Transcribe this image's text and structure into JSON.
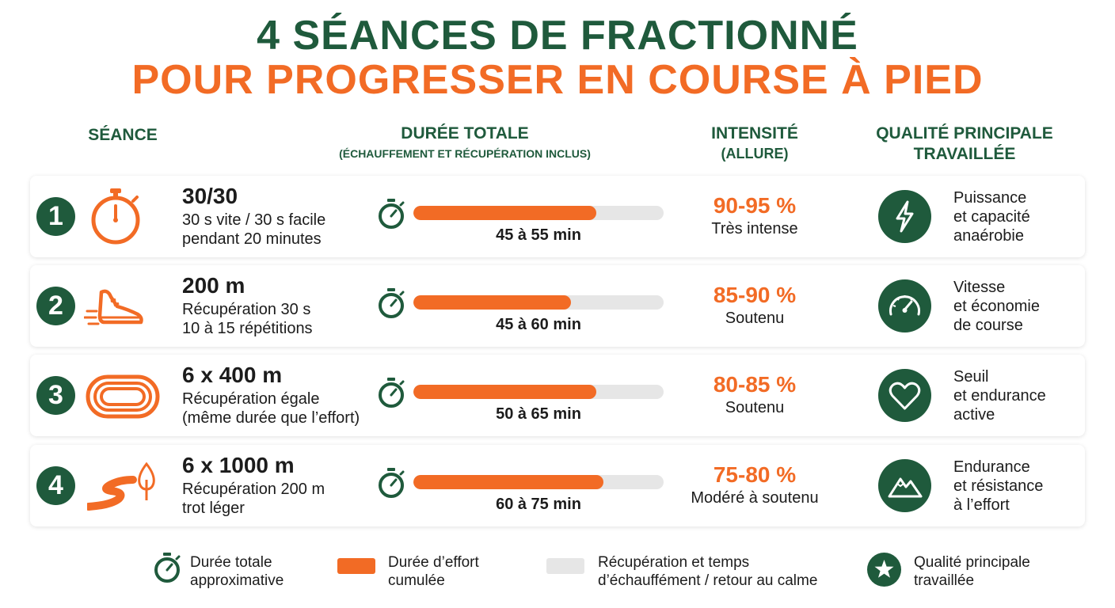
{
  "title": {
    "line1": "4 SÉANCES DE FRACTIONNÉ",
    "line2": "POUR PROGRESSER EN COURSE À PIED"
  },
  "headers": {
    "seance": "SÉANCE",
    "duree": "DURÉE TOTALE",
    "duree_sub": "(ÉCHAUFFEMENT ET RÉCUPÉRATION INCLUS)",
    "intensite": "INTENSITÉ",
    "intensite_sub": "(ALLURE)",
    "qualite_line1": "QUALITÉ PRINCIPALE",
    "qualite_line2": "TRAVAILLÉE"
  },
  "rows": [
    {
      "number": "1",
      "icon": "stopwatch-icon",
      "title": "30/30",
      "detail1": "30 s vite / 30 s facile",
      "detail2": "pendant 20 minutes",
      "effort_fraction": 0.73,
      "duration": "45 à 55 min",
      "intensity_pct": "90-95 %",
      "intensity_label": "Très intense",
      "quality_icon": "lightning-icon",
      "quality1": "Puissance",
      "quality2": "et capacité",
      "quality3": "anaérobie"
    },
    {
      "number": "2",
      "icon": "running-shoe-icon",
      "title": "200 m",
      "detail1": "Récupération 30 s",
      "detail2": "10 à 15 répétitions",
      "effort_fraction": 0.63,
      "duration": "45 à 60 min",
      "intensity_pct": "85-90 %",
      "intensity_label": "Soutenu",
      "quality_icon": "speedometer-icon",
      "quality1": "Vitesse",
      "quality2": "et économie",
      "quality3": "de course"
    },
    {
      "number": "3",
      "icon": "running-track-icon",
      "title": "6 x 400 m",
      "detail1": "Récupération égale",
      "detail2": "(même durée que l’effort)",
      "effort_fraction": 0.73,
      "duration": "50 à 65 min",
      "intensity_pct": "80-85 %",
      "intensity_label": "Soutenu",
      "quality_icon": "heart-icon",
      "quality1": "Seuil",
      "quality2": "et endurance",
      "quality3": "active"
    },
    {
      "number": "4",
      "icon": "winding-road-tree-icon",
      "title": "6 x 1000 m",
      "detail1": "Récupération 200 m",
      "detail2": "trot léger",
      "effort_fraction": 0.76,
      "duration": "60 à 75 min",
      "intensity_pct": "75-80 %",
      "intensity_label": "Modéré à soutenu",
      "quality_icon": "mountain-icon",
      "quality1": "Endurance",
      "quality2": "et résistance",
      "quality3": "à l’effort"
    }
  ],
  "legend": {
    "timer_line1": "Durée totale",
    "timer_line2": "approximative",
    "effort_line1": "Durée d’effort",
    "effort_line2": "cumulée",
    "recup_line1": "Récupération et temps",
    "recup_line2": "d’échauffément / retour au calme",
    "quality_line1": "Qualité principale",
    "quality_line2": "travaillée"
  },
  "colors": {
    "green": "#1f5a3c",
    "orange": "#f26b25",
    "track": "#e6e6e6"
  }
}
